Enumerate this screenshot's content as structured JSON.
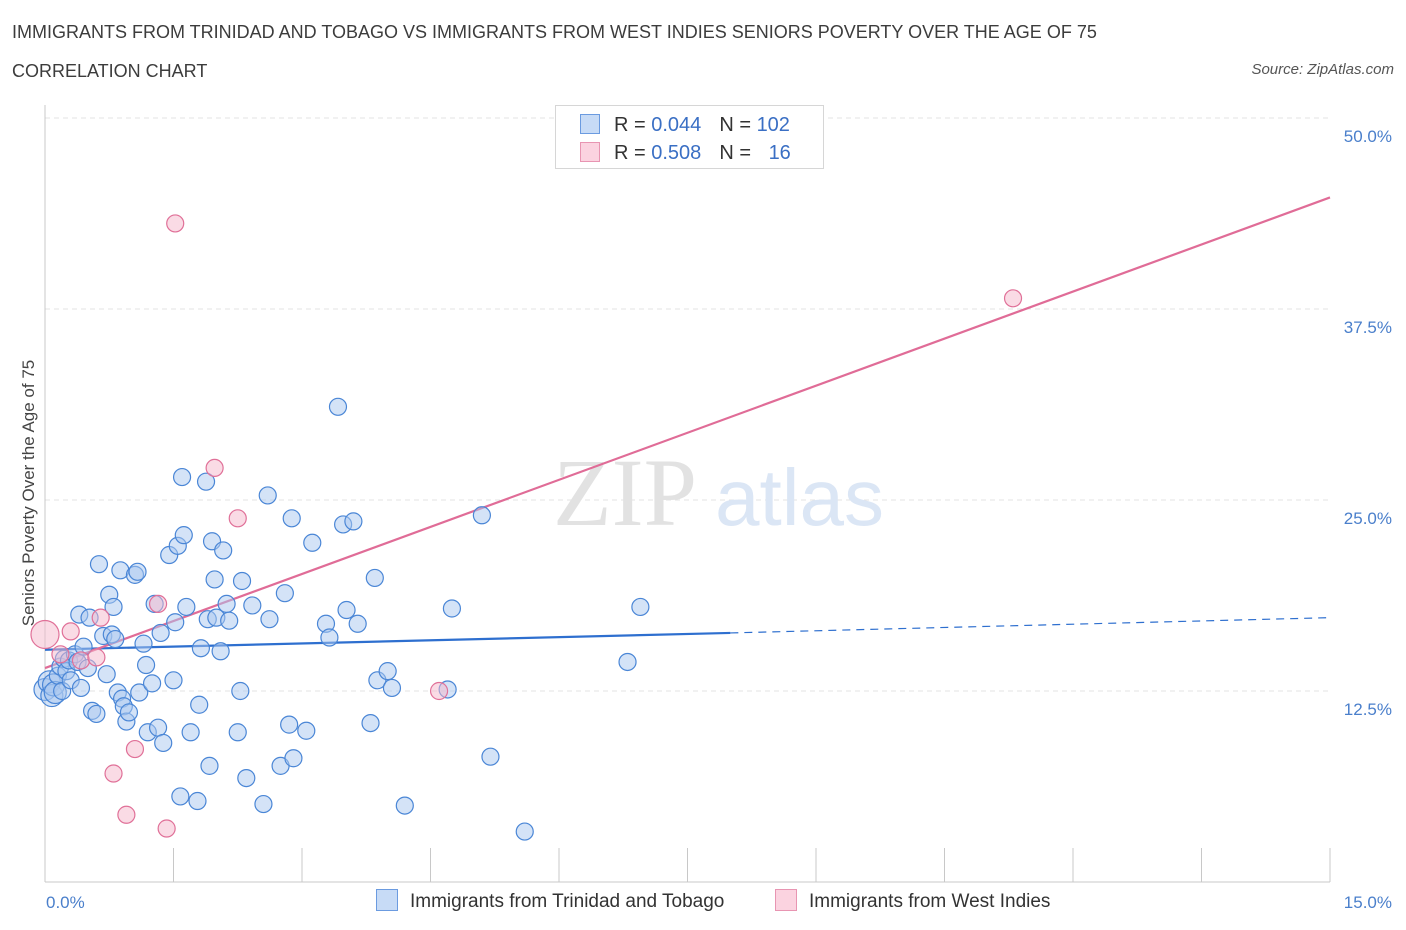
{
  "title": "IMMIGRANTS FROM TRINIDAD AND TOBAGO VS IMMIGRANTS FROM WEST INDIES SENIORS POVERTY OVER THE AGE OF 75",
  "subtitle": "CORRELATION CHART",
  "source": "Source: ZipAtlas.com",
  "watermark": {
    "zip": "ZIP",
    "atlas": "atlas"
  },
  "legend": {
    "rows": [
      {
        "r_label": "R = ",
        "r_value": "0.044",
        "n_label": "N = ",
        "n_value": "102",
        "color": "#a9c8f0"
      },
      {
        "r_label": "R = ",
        "r_value": "0.508",
        "n_label": "N = ",
        "n_value": "16",
        "color": "#f5b8cc"
      }
    ]
  },
  "bottom_legend": [
    {
      "label": "Immigrants from Trinidad and Tobago",
      "color": "#a9c8f0"
    },
    {
      "label": "Immigrants from West Indies",
      "color": "#f5b8cc"
    }
  ],
  "chart_data": {
    "type": "scatter",
    "ylabel": "Seniors Poverty Over the Age of 75",
    "x_tick_labels": [
      "0.0%",
      "15.0%"
    ],
    "y_tick_labels": [
      "12.5%",
      "25.0%",
      "37.5%",
      "50.0%"
    ],
    "y_ticks": [
      12.5,
      25.0,
      37.5,
      50.0
    ],
    "xlim": [
      0,
      15
    ],
    "ylim": [
      0,
      50
    ],
    "grid": true,
    "colors": {
      "blue": "#4a86d6",
      "blue_fill": "#a9c8f0",
      "pink": "#e07098",
      "pink_fill": "#f5b8cc",
      "blue_line": "#2e6fcf",
      "pink_line": "#e06c97"
    },
    "series": [
      {
        "name": "Immigrants from Trinidad and Tobago",
        "color": "#4a86d6",
        "trend": {
          "x0": 0,
          "y0": 15.2,
          "x1": 8.0,
          "y1": 16.3,
          "dash_x1": 15.0,
          "dash_y1": 17.3
        },
        "points": [
          [
            0.0,
            12.6
          ],
          [
            0.05,
            13.1
          ],
          [
            0.08,
            12.2
          ],
          [
            0.1,
            12.9
          ],
          [
            0.12,
            12.4
          ],
          [
            0.15,
            13.5
          ],
          [
            0.18,
            14.1
          ],
          [
            0.2,
            12.5
          ],
          [
            0.22,
            14.6
          ],
          [
            0.25,
            13.8
          ],
          [
            0.28,
            14.5
          ],
          [
            0.3,
            13.2
          ],
          [
            0.35,
            14.9
          ],
          [
            0.38,
            14.4
          ],
          [
            0.4,
            17.5
          ],
          [
            0.42,
            12.7
          ],
          [
            0.45,
            15.4
          ],
          [
            0.5,
            14.0
          ],
          [
            0.52,
            17.3
          ],
          [
            0.55,
            11.2
          ],
          [
            0.6,
            11.0
          ],
          [
            0.63,
            20.8
          ],
          [
            0.68,
            16.1
          ],
          [
            0.72,
            13.6
          ],
          [
            0.75,
            18.8
          ],
          [
            0.78,
            16.2
          ],
          [
            0.8,
            18.0
          ],
          [
            0.82,
            15.9
          ],
          [
            0.85,
            12.4
          ],
          [
            0.88,
            20.4
          ],
          [
            0.9,
            12.0
          ],
          [
            0.92,
            11.5
          ],
          [
            0.95,
            10.5
          ],
          [
            0.98,
            11.1
          ],
          [
            1.05,
            20.1
          ],
          [
            1.08,
            20.3
          ],
          [
            1.1,
            12.4
          ],
          [
            1.15,
            15.6
          ],
          [
            1.18,
            14.2
          ],
          [
            1.2,
            9.8
          ],
          [
            1.25,
            13.0
          ],
          [
            1.28,
            18.2
          ],
          [
            1.32,
            10.1
          ],
          [
            1.35,
            16.3
          ],
          [
            1.38,
            9.1
          ],
          [
            1.45,
            21.4
          ],
          [
            1.5,
            13.2
          ],
          [
            1.52,
            17.0
          ],
          [
            1.55,
            22.0
          ],
          [
            1.58,
            5.6
          ],
          [
            1.6,
            26.5
          ],
          [
            1.62,
            22.7
          ],
          [
            1.65,
            18.0
          ],
          [
            1.7,
            9.8
          ],
          [
            1.78,
            5.3
          ],
          [
            1.8,
            11.6
          ],
          [
            1.82,
            15.3
          ],
          [
            1.88,
            26.2
          ],
          [
            1.9,
            17.2
          ],
          [
            1.92,
            7.6
          ],
          [
            1.95,
            22.3
          ],
          [
            1.98,
            19.8
          ],
          [
            2.0,
            17.3
          ],
          [
            2.05,
            15.1
          ],
          [
            2.08,
            21.7
          ],
          [
            2.12,
            18.2
          ],
          [
            2.15,
            17.1
          ],
          [
            2.25,
            9.8
          ],
          [
            2.28,
            12.5
          ],
          [
            2.3,
            19.7
          ],
          [
            2.35,
            6.8
          ],
          [
            2.42,
            18.1
          ],
          [
            2.55,
            5.1
          ],
          [
            2.6,
            25.3
          ],
          [
            2.62,
            17.2
          ],
          [
            2.75,
            7.6
          ],
          [
            2.8,
            18.9
          ],
          [
            2.85,
            10.3
          ],
          [
            2.88,
            23.8
          ],
          [
            2.9,
            8.1
          ],
          [
            3.05,
            9.9
          ],
          [
            3.12,
            22.2
          ],
          [
            3.28,
            16.9
          ],
          [
            3.32,
            16.0
          ],
          [
            3.42,
            31.1
          ],
          [
            3.48,
            23.4
          ],
          [
            3.52,
            17.8
          ],
          [
            3.6,
            23.6
          ],
          [
            3.65,
            16.9
          ],
          [
            3.8,
            10.4
          ],
          [
            3.85,
            19.9
          ],
          [
            3.88,
            13.2
          ],
          [
            4.0,
            13.8
          ],
          [
            4.05,
            12.7
          ],
          [
            4.2,
            5.0
          ],
          [
            4.7,
            12.6
          ],
          [
            4.75,
            17.9
          ],
          [
            5.1,
            24.0
          ],
          [
            5.2,
            8.2
          ],
          [
            5.6,
            3.3
          ],
          [
            6.8,
            14.4
          ],
          [
            6.95,
            18.0
          ]
        ]
      },
      {
        "name": "Immigrants from West Indies",
        "color": "#e07098",
        "trend": {
          "x0": 0,
          "y0": 14.0,
          "x1": 15.0,
          "y1": 44.8
        },
        "points": [
          [
            0.0,
            16.2
          ],
          [
            0.18,
            14.9
          ],
          [
            0.3,
            16.4
          ],
          [
            0.42,
            14.5
          ],
          [
            0.6,
            14.7
          ],
          [
            0.65,
            17.3
          ],
          [
            0.8,
            7.1
          ],
          [
            0.95,
            4.4
          ],
          [
            1.05,
            8.7
          ],
          [
            1.32,
            18.2
          ],
          [
            1.42,
            3.5
          ],
          [
            1.52,
            43.1
          ],
          [
            1.98,
            27.1
          ],
          [
            2.25,
            23.8
          ],
          [
            4.6,
            12.5
          ],
          [
            11.3,
            38.2
          ]
        ]
      }
    ]
  }
}
